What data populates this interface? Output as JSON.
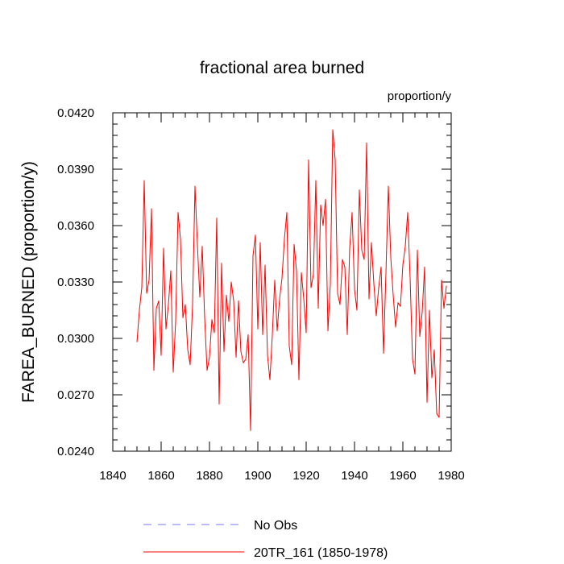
{
  "chart_data": {
    "type": "line",
    "title": "fractional area burned",
    "units_label": "proportion/y",
    "xlabel": "",
    "ylabel": "FAREA_BURNED  (proportion/y)",
    "xlim": [
      1840,
      1980
    ],
    "ylim": [
      0.024,
      0.042
    ],
    "x_major_ticks": [
      1840,
      1860,
      1880,
      1900,
      1920,
      1940,
      1960,
      1980
    ],
    "x_minor_step": 5,
    "y_major_ticks": [
      0.024,
      0.027,
      0.03,
      0.033,
      0.036,
      0.039,
      0.042
    ],
    "y_tick_labels": [
      "0.0240",
      "0.0270",
      "0.0300",
      "0.0330",
      "0.0360",
      "0.0390",
      "0.0420"
    ],
    "y_minor_step": 0.0006,
    "grid": false,
    "legend": [
      {
        "label": "No Obs",
        "color": "#7777ff",
        "style": "dashed"
      },
      {
        "label": "20TR_161 (1850-1978)",
        "color": "#ff0000",
        "style": "solid"
      }
    ],
    "series": [
      {
        "name": "20TR_161 (1850-1978)",
        "color": "#ff0000",
        "x_start": 1850,
        "x_step": 1,
        "values": [
          0.0298,
          0.0315,
          0.0327,
          0.0384,
          0.0324,
          0.0331,
          0.0369,
          0.0283,
          0.0316,
          0.032,
          0.0291,
          0.0348,
          0.0305,
          0.0318,
          0.0336,
          0.0282,
          0.0309,
          0.0367,
          0.0353,
          0.0311,
          0.0318,
          0.0294,
          0.0286,
          0.0318,
          0.0381,
          0.035,
          0.0322,
          0.0349,
          0.0311,
          0.0283,
          0.029,
          0.031,
          0.0303,
          0.0364,
          0.0265,
          0.034,
          0.0293,
          0.0323,
          0.0309,
          0.033,
          0.032,
          0.029,
          0.032,
          0.0293,
          0.0287,
          0.0289,
          0.0302,
          0.0251,
          0.0344,
          0.0355,
          0.0305,
          0.0351,
          0.0302,
          0.0339,
          0.0291,
          0.0278,
          0.0302,
          0.0331,
          0.0304,
          0.0321,
          0.0332,
          0.0353,
          0.0367,
          0.0296,
          0.0286,
          0.035,
          0.0336,
          0.0278,
          0.0335,
          0.0321,
          0.0303,
          0.0395,
          0.0327,
          0.0334,
          0.0384,
          0.0316,
          0.0371,
          0.036,
          0.0374,
          0.0304,
          0.0329,
          0.0411,
          0.0395,
          0.0324,
          0.0318,
          0.0342,
          0.0338,
          0.0302,
          0.0348,
          0.0367,
          0.0326,
          0.0315,
          0.0379,
          0.0347,
          0.0342,
          0.0404,
          0.0321,
          0.0351,
          0.0329,
          0.0312,
          0.0327,
          0.0338,
          0.0292,
          0.0335,
          0.0381,
          0.0343,
          0.0323,
          0.0306,
          0.0319,
          0.0317,
          0.0339,
          0.0349,
          0.0367,
          0.0332,
          0.0289,
          0.0281,
          0.0347,
          0.0301,
          0.0314,
          0.0338,
          0.0266,
          0.0315,
          0.0279,
          0.0294,
          0.026,
          0.0258,
          0.0331,
          0.0316,
          0.0328
        ]
      }
    ]
  }
}
